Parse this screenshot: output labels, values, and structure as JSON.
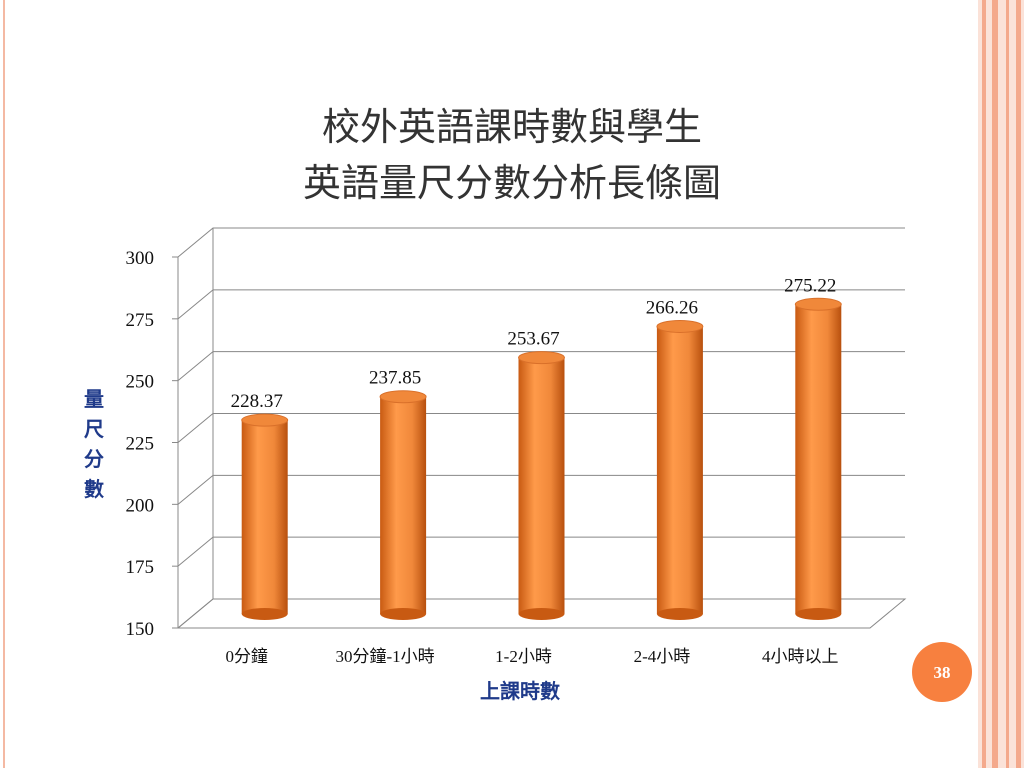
{
  "chart_data": {
    "type": "bar",
    "title": [
      "校外英語課時數與學生",
      "英語量尺分數分析長條圖"
    ],
    "x_label": "上課時數",
    "y_label": "量尺分數",
    "categories": [
      "0分鐘",
      "30分鐘-1小時",
      "1-2小時",
      "2-4小時",
      "4小時以上"
    ],
    "values": [
      228.37,
      237.85,
      253.67,
      266.26,
      275.22
    ],
    "color": "#f0883a",
    "ylim": [
      150,
      300
    ],
    "yticks": [
      150,
      175,
      200,
      225,
      250,
      275,
      300
    ],
    "grid": true
  },
  "slide": {
    "page_number": "38"
  }
}
